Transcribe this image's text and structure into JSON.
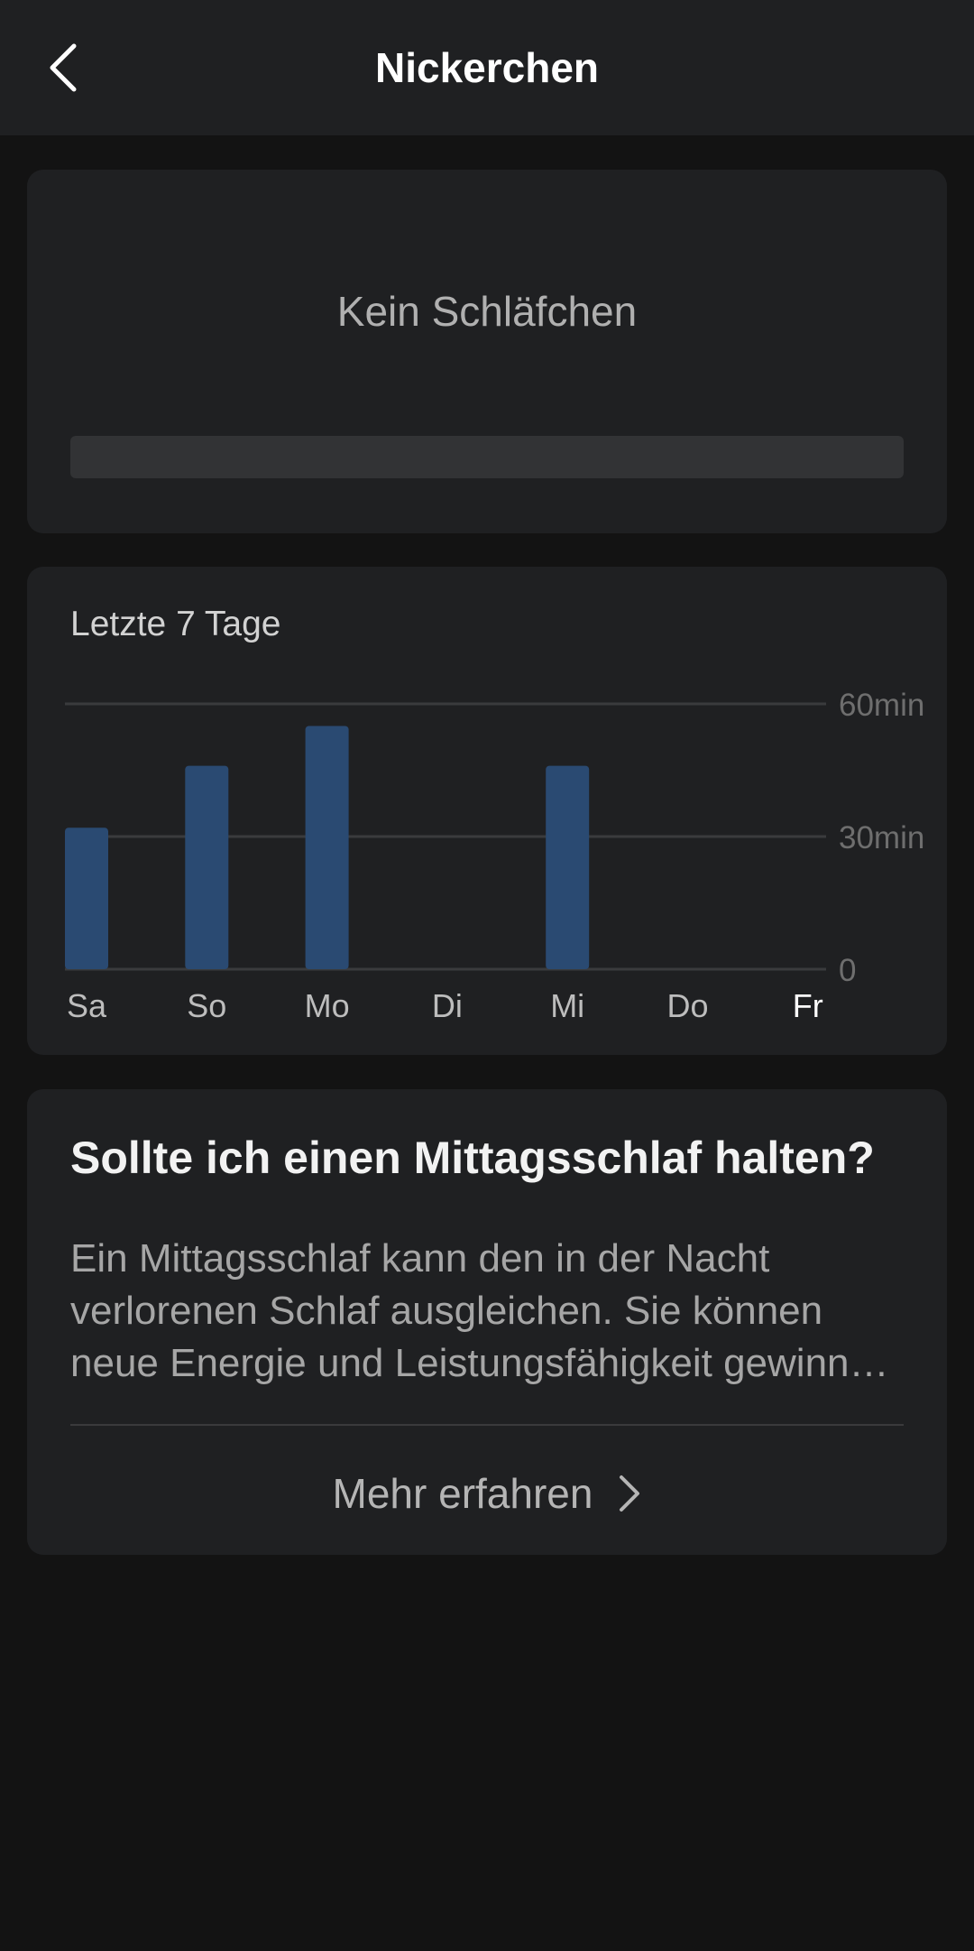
{
  "header": {
    "title": "Nickerchen",
    "back_icon": "chevron-left-icon"
  },
  "status_card": {
    "status_text": "Kein Schläfchen",
    "progress_fraction": 0
  },
  "chart_card": {
    "title": "Letzte 7 Tage"
  },
  "chart_data": {
    "type": "bar",
    "title": "",
    "xlabel": "",
    "ylabel": "",
    "categories": [
      "Sa",
      "So",
      "Mo",
      "Di",
      "Mi",
      "Do",
      "Fr"
    ],
    "values": [
      32,
      46,
      55,
      0,
      46,
      0,
      0
    ],
    "ylim": [
      0,
      60
    ],
    "ytick_labels": [
      "0",
      "30min",
      "60min"
    ],
    "ytick_values": [
      0,
      30,
      60
    ],
    "highlighted_category": "Fr",
    "grid": true,
    "legend": "none",
    "colors": {
      "bar": "#2a4a72",
      "grid": "#3a3b3d",
      "tick": "#6e6e6e",
      "category": "#bdbdbd",
      "category_highlight": "#ffffff"
    }
  },
  "info_card": {
    "title": "Sollte ich einen Mittagsschlaf halten?",
    "body_lines": [
      "Ein Mittagsschlaf kann den in der Nacht",
      "verlorenen Schlaf ausgleichen. Sie können",
      "neue Energie und Leistungsfähigkeit gewinnen."
    ],
    "more_label": "Mehr erfahren",
    "more_icon": "chevron-right-icon"
  }
}
